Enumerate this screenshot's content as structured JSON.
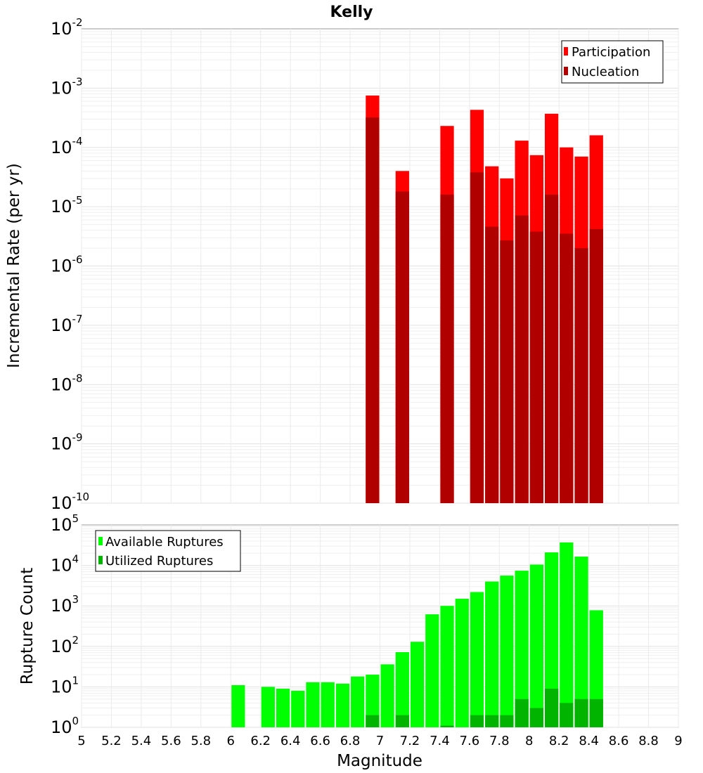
{
  "chart_data": [
    {
      "type": "bar",
      "title": "Kelly",
      "ylabel": "Incremental Rate (per yr)",
      "yscale": "log",
      "ylim": [
        1e-10,
        0.01
      ],
      "y_ticks": [
        "10^-10",
        "10^-9",
        "10^-8",
        "10^-7",
        "10^-6",
        "10^-5",
        "10^-4",
        "10^-3",
        "10^-2"
      ],
      "legend_position": "top-right",
      "series": [
        {
          "name": "Participation",
          "color": "#ff0000",
          "x": [
            6.95,
            7.15,
            7.45,
            7.65,
            7.75,
            7.85,
            7.95,
            8.05,
            8.15,
            8.25,
            8.35,
            8.45
          ],
          "values": [
            0.00075,
            4e-05,
            0.00023,
            0.00043,
            4.8e-05,
            3e-05,
            0.00013,
            7.4e-05,
            0.00037,
            0.0001,
            7e-05,
            0.00016
          ]
        },
        {
          "name": "Nucleation",
          "color": "#b00000",
          "x": [
            6.95,
            7.15,
            7.45,
            7.65,
            7.75,
            7.85,
            7.95,
            8.05,
            8.15,
            8.25,
            8.35,
            8.45
          ],
          "values": [
            0.00032,
            1.8e-05,
            1.6e-05,
            3.8e-05,
            4.6e-06,
            2.7e-06,
            7.1e-06,
            3.8e-06,
            1.6e-05,
            3.5e-06,
            2e-06,
            4.2e-06
          ]
        }
      ]
    },
    {
      "type": "bar",
      "xlabel": "Magnitude",
      "ylabel": "Rupture Count",
      "yscale": "log",
      "ylim": [
        1,
        100000
      ],
      "y_ticks": [
        "10^0",
        "10^1",
        "10^2",
        "10^3",
        "10^4",
        "10^5"
      ],
      "xlim": [
        5,
        9
      ],
      "x_ticks": [
        "5",
        "5.2",
        "5.4",
        "5.6",
        "5.8",
        "6",
        "6.2",
        "6.4",
        "6.6",
        "6.8",
        "7",
        "7.2",
        "7.4",
        "7.6",
        "7.8",
        "8",
        "8.2",
        "8.4",
        "8.6",
        "8.8",
        "9"
      ],
      "legend_position": "top-left",
      "series": [
        {
          "name": "Available Ruptures",
          "color": "#00ff00",
          "x": [
            6.05,
            6.25,
            6.35,
            6.45,
            6.55,
            6.65,
            6.75,
            6.85,
            6.95,
            7.05,
            7.15,
            7.25,
            7.35,
            7.45,
            7.55,
            7.65,
            7.75,
            7.85,
            7.95,
            8.05,
            8.15,
            8.25,
            8.35,
            8.45
          ],
          "values": [
            11,
            10,
            9,
            8,
            13,
            13,
            12,
            18,
            20,
            36,
            72,
            130,
            620,
            1000,
            1500,
            2200,
            4000,
            5600,
            7400,
            10500,
            21000,
            37000,
            16500,
            780
          ]
        },
        {
          "name": "Utilized Ruptures",
          "color": "#00b400",
          "x": [
            6.95,
            7.15,
            7.45,
            7.65,
            7.75,
            7.85,
            7.95,
            8.05,
            8.15,
            8.25,
            8.35,
            8.45
          ],
          "values": [
            2,
            2,
            1.1,
            2,
            2,
            2,
            5,
            3,
            9,
            4,
            5,
            5
          ]
        }
      ]
    }
  ]
}
